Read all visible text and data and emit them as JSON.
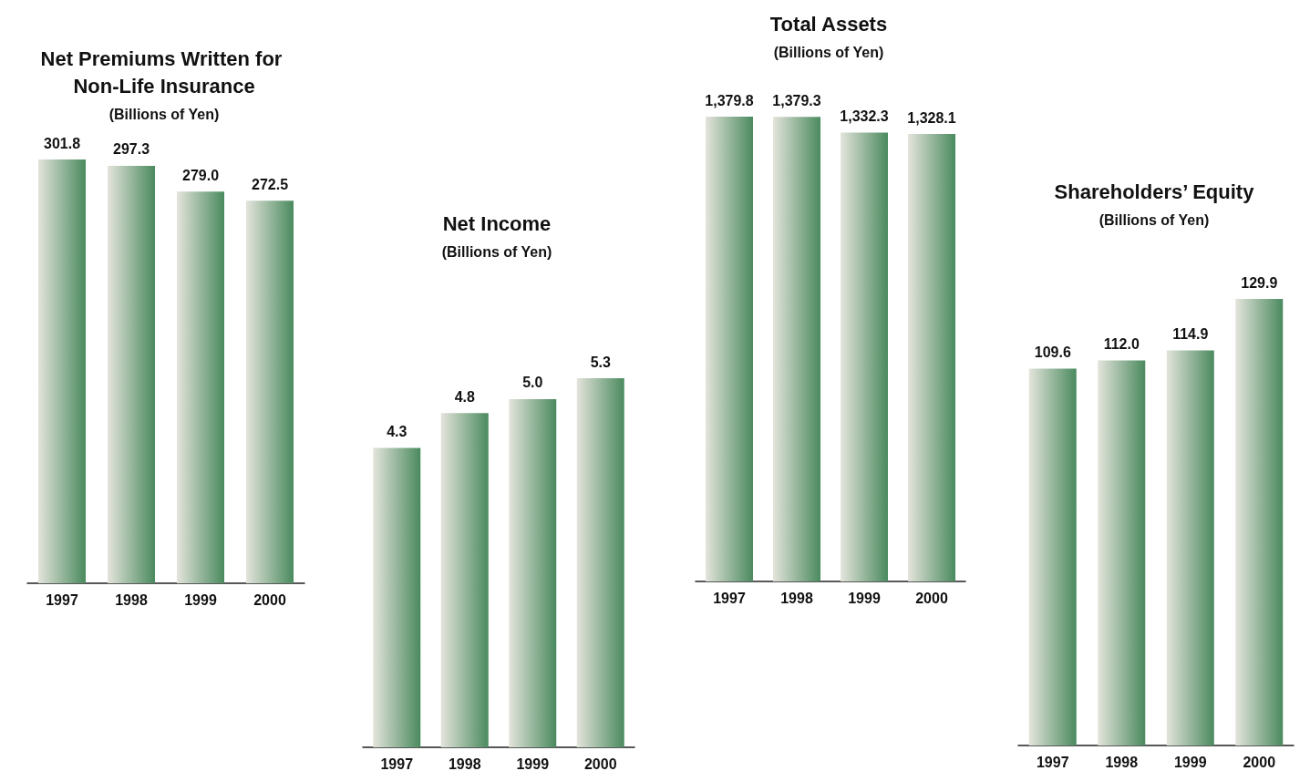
{
  "chart_data": [
    {
      "type": "bar",
      "title": "Net Premiums Written for Non-Life Insurance",
      "subtitle": "(Billions of Yen)",
      "categories": [
        "1997",
        "1998",
        "1999",
        "2000"
      ],
      "values": [
        301.8,
        297.3,
        279.0,
        272.5
      ],
      "value_labels": [
        "301.8",
        "297.3",
        "279.0",
        "272.5"
      ],
      "color": "#4a8a5e"
    },
    {
      "type": "bar",
      "title": "Net Income",
      "subtitle": "(Billions of Yen)",
      "categories": [
        "1997",
        "1998",
        "1999",
        "2000"
      ],
      "values": [
        4.3,
        4.8,
        5.0,
        5.3
      ],
      "value_labels": [
        "4.3",
        "4.8",
        "5.0",
        "5.3"
      ],
      "color": "#4a8a5e"
    },
    {
      "type": "bar",
      "title": "Total Assets",
      "subtitle": "(Billions of Yen)",
      "categories": [
        "1997",
        "1998",
        "1999",
        "2000"
      ],
      "values": [
        1379.8,
        1379.3,
        1332.3,
        1328.1
      ],
      "value_labels": [
        "1,379.8",
        "1,379.3",
        "1,332.3",
        "1,328.1"
      ],
      "color": "#4a8a5e"
    },
    {
      "type": "bar",
      "title": "Shareholders’ Equity",
      "subtitle": "(Billions of Yen)",
      "categories": [
        "1997",
        "1998",
        "1999",
        "2000"
      ],
      "values": [
        109.6,
        112.0,
        114.9,
        129.9
      ],
      "value_labels": [
        "109.6",
        "112.0",
        "114.9",
        "129.9"
      ],
      "color": "#4a8a5e"
    }
  ]
}
